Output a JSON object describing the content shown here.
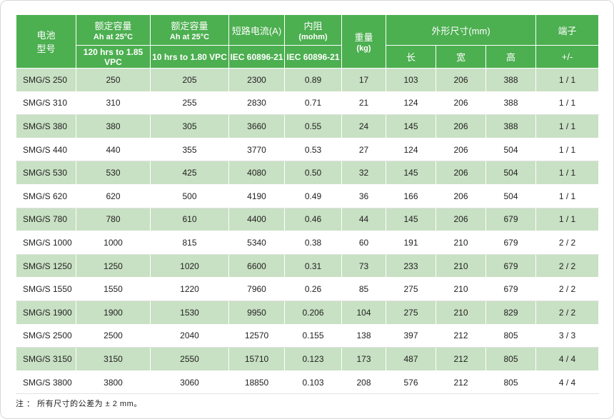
{
  "header": {
    "model": "电池\n型号",
    "cap1_title": "额定容量",
    "cap1_sub": "Ah at 25°C",
    "cap1_cond": "120 hrs to 1.85 VPC",
    "cap2_title": "额定容量",
    "cap2_sub": "Ah at 25°C",
    "cap2_cond": "10 hrs to 1.80 VPC",
    "short_title": "短路电流(A)",
    "short_std": "IEC 60896-21",
    "res_title": "内阻",
    "res_sub": "(mohm)",
    "res_std": "IEC 60896-21",
    "weight_title": "重量",
    "weight_sub": "(kg)",
    "dims_title": "外形尺寸(mm)",
    "dims_l": "长",
    "dims_w": "宽",
    "dims_h": "高",
    "term_title": "端子",
    "term_sub": "+/-"
  },
  "rows": [
    {
      "model": "SMG/S 250",
      "cap120": "250",
      "cap10": "205",
      "short": "2300",
      "res": "0.89",
      "weight": "17",
      "l": "103",
      "w": "206",
      "h": "388",
      "term": "1 / 1"
    },
    {
      "model": "SMG/S 310",
      "cap120": "310",
      "cap10": "255",
      "short": "2830",
      "res": "0.71",
      "weight": "21",
      "l": "124",
      "w": "206",
      "h": "388",
      "term": "1 / 1"
    },
    {
      "model": "SMG/S 380",
      "cap120": "380",
      "cap10": "305",
      "short": "3660",
      "res": "0.55",
      "weight": "24",
      "l": "145",
      "w": "206",
      "h": "388",
      "term": "1 / 1"
    },
    {
      "model": "SMG/S 440",
      "cap120": "440",
      "cap10": "355",
      "short": "3770",
      "res": "0.53",
      "weight": "27",
      "l": "124",
      "w": "206",
      "h": "504",
      "term": "1 / 1"
    },
    {
      "model": "SMG/S 530",
      "cap120": "530",
      "cap10": "425",
      "short": "4080",
      "res": "0.50",
      "weight": "32",
      "l": "145",
      "w": "206",
      "h": "504",
      "term": "1 / 1"
    },
    {
      "model": "SMG/S 620",
      "cap120": "620",
      "cap10": "500",
      "short": "4190",
      "res": "0.49",
      "weight": "36",
      "l": "166",
      "w": "206",
      "h": "504",
      "term": "1 / 1"
    },
    {
      "model": "SMG/S 780",
      "cap120": "780",
      "cap10": "610",
      "short": "4400",
      "res": "0.46",
      "weight": "44",
      "l": "145",
      "w": "206",
      "h": "679",
      "term": "1 / 1"
    },
    {
      "model": "SMG/S 1000",
      "cap120": "1000",
      "cap10": "815",
      "short": "5340",
      "res": "0.38",
      "weight": "60",
      "l": "191",
      "w": "210",
      "h": "679",
      "term": "2 / 2"
    },
    {
      "model": "SMG/S 1250",
      "cap120": "1250",
      "cap10": "1020",
      "short": "6600",
      "res": "0.31",
      "weight": "73",
      "l": "233",
      "w": "210",
      "h": "679",
      "term": "2 / 2"
    },
    {
      "model": "SMG/S 1550",
      "cap120": "1550",
      "cap10": "1220",
      "short": "7960",
      "res": "0.26",
      "weight": "85",
      "l": "275",
      "w": "210",
      "h": "679",
      "term": "2 / 2"
    },
    {
      "model": "SMG/S 1900",
      "cap120": "1900",
      "cap10": "1530",
      "short": "9950",
      "res": "0.206",
      "weight": "104",
      "l": "275",
      "w": "210",
      "h": "829",
      "term": "2 / 2"
    },
    {
      "model": "SMG/S 2500",
      "cap120": "2500",
      "cap10": "2040",
      "short": "12570",
      "res": "0.155",
      "weight": "138",
      "l": "397",
      "w": "212",
      "h": "805",
      "term": "3 / 3"
    },
    {
      "model": "SMG/S 3150",
      "cap120": "3150",
      "cap10": "2550",
      "short": "15710",
      "res": "0.123",
      "weight": "173",
      "l": "487",
      "w": "212",
      "h": "805",
      "term": "4 / 4"
    },
    {
      "model": "SMG/S 3800",
      "cap120": "3800",
      "cap10": "3060",
      "short": "18850",
      "res": "0.103",
      "weight": "208",
      "l": "576",
      "w": "212",
      "h": "805",
      "term": "4 / 4"
    }
  ],
  "note": "注 ： 所有尺寸的公差为 ± 2 mm。",
  "colors": {
    "header_bg": "#4caf50",
    "stripe": "#c8e0c3"
  }
}
